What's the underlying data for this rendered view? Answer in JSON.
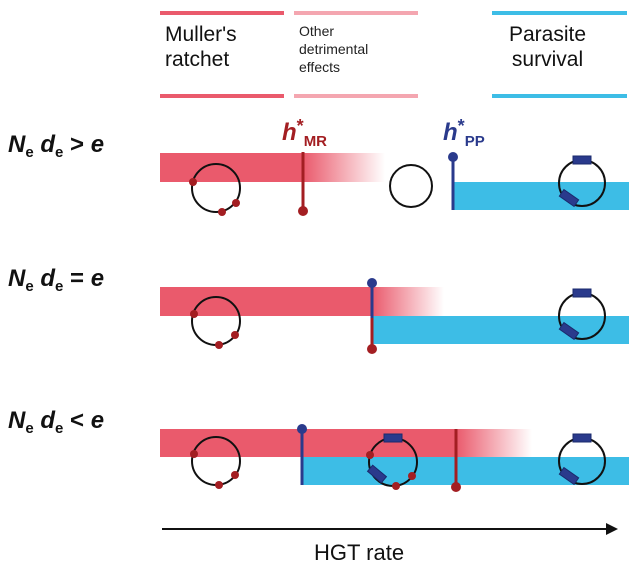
{
  "headers": {
    "mullers_ratchet": [
      "Muller's",
      "ratchet"
    ],
    "other_effects": [
      "Other",
      "detrimental",
      "effects"
    ],
    "parasite_survival": [
      "Parasite",
      "survival"
    ]
  },
  "thresholds": {
    "h": "h",
    "star": "*",
    "mr": "MR",
    "pp": "PP"
  },
  "rows": [
    {
      "n": "N",
      "n_sub": "e",
      "d": "d",
      "d_sub": "e",
      "op": ">",
      "e": "e"
    },
    {
      "n": "N",
      "n_sub": "e",
      "d": "d",
      "d_sub": "e",
      "op": "=",
      "e": "e"
    },
    {
      "n": "N",
      "n_sub": "e",
      "d": "d",
      "d_sub": "e",
      "op": "<",
      "e": "e"
    }
  ],
  "axis": {
    "label": "HGT rate"
  },
  "colors": {
    "ratchet": "#ea5a6c",
    "ratchet_light": "#f4a6b0",
    "parasite": "#3dbde6",
    "mr_line": "#a31e22",
    "pp_line": "#2a3a8c",
    "axis": "#111111"
  }
}
